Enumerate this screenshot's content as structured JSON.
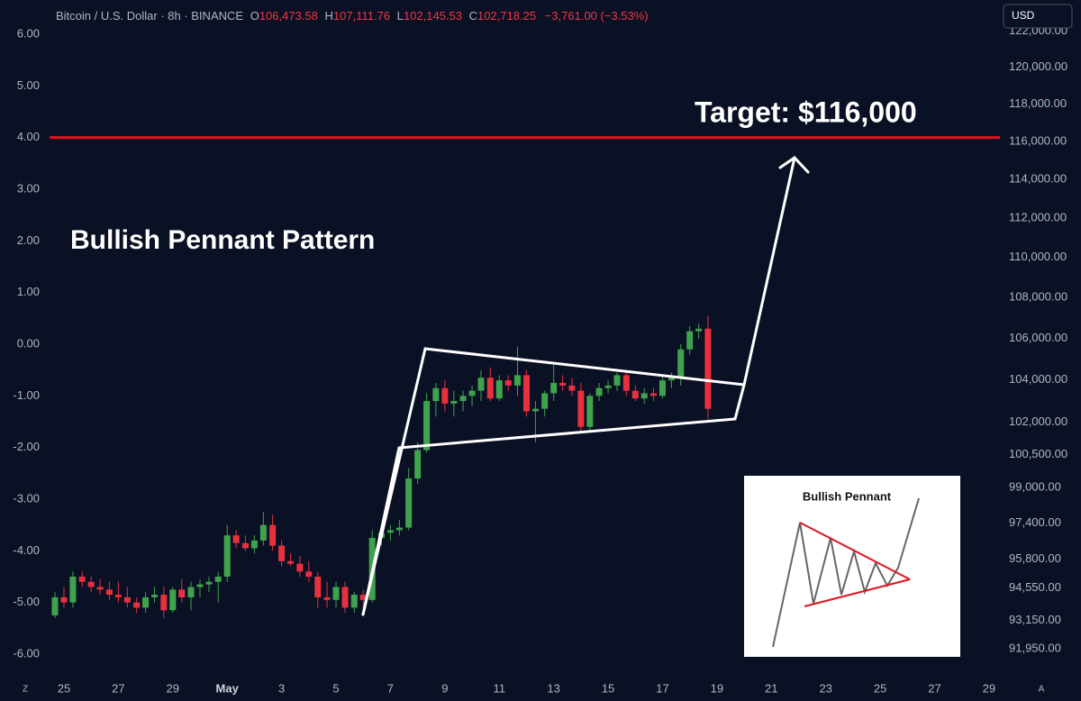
{
  "header": {
    "symbol": "Bitcoin / U.S. Dollar · 8h · BINANCE",
    "ohlc": [
      {
        "key": "O",
        "value": "106,473.58"
      },
      {
        "key": "H",
        "value": "107,111.76"
      },
      {
        "key": "L",
        "value": "102,145.53"
      },
      {
        "key": "C",
        "value": "102,718.25"
      }
    ],
    "change": "−3,761.00 (−3.53%)",
    "currency": "USD"
  },
  "toolbar": {
    "left": "Z",
    "right": "A"
  },
  "inset": {
    "title": "Bullish Pennant"
  },
  "chart_data": {
    "type": "candlestick",
    "annotations": {
      "pattern": "Bullish Pennant Pattern",
      "target": "Target: $116,000"
    },
    "up_color": "#3fa34d",
    "down_color": "#e8313f",
    "hline": {
      "value": 4,
      "color": "#e0141e"
    },
    "x": [
      -0.33,
      0,
      0.33,
      0.67,
      1,
      1.33,
      1.67,
      2,
      2.33,
      2.67,
      3,
      3.33,
      3.67,
      4,
      4.33,
      4.67,
      5,
      5.33,
      5.67,
      6,
      6.33,
      6.67,
      7,
      7.33,
      7.67,
      8,
      8.33,
      8.67,
      9,
      9.33,
      9.67,
      10,
      10.33,
      10.67,
      11,
      11.33,
      11.67,
      12,
      12.33,
      12.67,
      13,
      13.33,
      13.67,
      14,
      14.33,
      14.67,
      15,
      15.33,
      15.67,
      16,
      16.33,
      16.67,
      17,
      17.33,
      17.67,
      18,
      18.33,
      18.67,
      19,
      19.33,
      19.67,
      20,
      20.33,
      20.67,
      21,
      21.33,
      21.67,
      22,
      22.33,
      22.67,
      23,
      23.33,
      23.67
    ],
    "open": [
      -5.25,
      -4.9,
      -5.0,
      -4.5,
      -4.6,
      -4.7,
      -4.75,
      -4.85,
      -4.9,
      -5.0,
      -5.1,
      -4.9,
      -4.85,
      -5.15,
      -4.75,
      -4.9,
      -4.7,
      -4.65,
      -4.6,
      -4.5,
      -3.7,
      -3.85,
      -3.95,
      -3.8,
      -3.5,
      -3.9,
      -4.2,
      -4.25,
      -4.4,
      -4.5,
      -4.9,
      -4.95,
      -4.7,
      -5.1,
      -4.85,
      -4.95,
      -3.75,
      -3.65,
      -3.6,
      -3.55,
      -2.6,
      -2.05,
      -1.1,
      -0.85,
      -1.15,
      -1.1,
      -1.0,
      -0.9,
      -0.65,
      -1.05,
      -0.7,
      -0.8,
      -0.6,
      -1.3,
      -1.25,
      -0.95,
      -0.75,
      -0.8,
      -0.9,
      -1.6,
      -1.0,
      -0.85,
      -0.8,
      -0.6,
      -0.9,
      -1.05,
      -0.95,
      -1.0,
      -0.7,
      -0.65,
      -0.1,
      0.25,
      0.3
    ],
    "high": [
      -4.8,
      -4.7,
      -4.4,
      -4.4,
      -4.5,
      -4.55,
      -4.6,
      -4.6,
      -4.7,
      -4.9,
      -4.8,
      -4.7,
      -4.7,
      -4.7,
      -4.55,
      -4.6,
      -4.55,
      -4.5,
      -4.4,
      -3.5,
      -3.6,
      -3.7,
      -3.7,
      -3.25,
      -3.3,
      -3.8,
      -4.05,
      -4.1,
      -4.2,
      -4.4,
      -4.6,
      -4.6,
      -4.6,
      -4.8,
      -4.75,
      -3.6,
      -3.5,
      -3.5,
      -3.4,
      -2.4,
      -1.9,
      -0.95,
      -0.75,
      -0.7,
      -0.9,
      -0.9,
      -0.8,
      -0.5,
      -0.45,
      -0.6,
      -0.6,
      -0.05,
      -0.5,
      -1.1,
      -0.9,
      -0.4,
      -0.6,
      -0.65,
      -0.75,
      -0.95,
      -0.75,
      -0.7,
      -0.55,
      -0.5,
      -0.8,
      -0.85,
      -0.85,
      -0.6,
      -0.55,
      0.0,
      0.35,
      0.4,
      0.55
    ],
    "low": [
      -5.3,
      -5.1,
      -5.1,
      -4.7,
      -4.8,
      -4.85,
      -4.95,
      -5.0,
      -5.1,
      -5.2,
      -5.2,
      -5.0,
      -5.3,
      -5.2,
      -5.0,
      -5.15,
      -4.9,
      -4.8,
      -5.0,
      -4.6,
      -3.95,
      -4.0,
      -4.05,
      -3.9,
      -4.0,
      -4.3,
      -4.3,
      -4.5,
      -4.6,
      -5.1,
      -5.1,
      -5.1,
      -5.2,
      -5.2,
      -5.1,
      -5.0,
      -3.9,
      -3.8,
      -3.7,
      -3.6,
      -2.7,
      -2.1,
      -1.4,
      -1.3,
      -1.4,
      -1.3,
      -1.2,
      -1.1,
      -1.1,
      -1.1,
      -0.9,
      -1.0,
      -1.4,
      -1.9,
      -1.4,
      -1.1,
      -0.9,
      -1.0,
      -1.7,
      -1.7,
      -1.1,
      -0.95,
      -0.9,
      -1.0,
      -1.1,
      -1.15,
      -1.1,
      -1.05,
      -0.85,
      -0.8,
      -0.2,
      0.1,
      -1.45
    ],
    "close": [
      -4.9,
      -5.0,
      -4.5,
      -4.6,
      -4.7,
      -4.75,
      -4.85,
      -4.9,
      -5.0,
      -5.1,
      -4.9,
      -4.85,
      -5.15,
      -4.75,
      -4.9,
      -4.7,
      -4.65,
      -4.6,
      -4.5,
      -3.7,
      -3.85,
      -3.95,
      -3.8,
      -3.5,
      -3.9,
      -4.2,
      -4.25,
      -4.4,
      -4.5,
      -4.9,
      -4.95,
      -4.7,
      -5.1,
      -4.85,
      -4.95,
      -3.75,
      -3.65,
      -3.6,
      -3.55,
      -2.6,
      -2.05,
      -1.1,
      -0.85,
      -1.15,
      -1.1,
      -1.0,
      -0.9,
      -0.65,
      -1.05,
      -0.7,
      -0.8,
      -0.6,
      -1.3,
      -1.25,
      -0.95,
      -0.75,
      -0.8,
      -0.9,
      -1.6,
      -1.0,
      -0.85,
      -0.8,
      -0.6,
      -0.9,
      -1.05,
      -0.95,
      -1.0,
      -0.7,
      -0.65,
      -0.1,
      0.25,
      0.3,
      -1.25
    ],
    "xlim": [
      -2.35,
      34.4
    ],
    "xticks": [
      {
        "value": 0,
        "label": "25"
      },
      {
        "value": 2,
        "label": "27"
      },
      {
        "value": 4,
        "label": "29"
      },
      {
        "value": 6,
        "label": "May"
      },
      {
        "value": 8,
        "label": "3"
      },
      {
        "value": 10,
        "label": "5"
      },
      {
        "value": 12,
        "label": "7"
      },
      {
        "value": 14,
        "label": "9"
      },
      {
        "value": 16,
        "label": "11"
      },
      {
        "value": 18,
        "label": "13"
      },
      {
        "value": 20,
        "label": "15"
      },
      {
        "value": 22,
        "label": "17"
      },
      {
        "value": 24,
        "label": "19"
      },
      {
        "value": 26,
        "label": "21"
      },
      {
        "value": 28,
        "label": "23"
      },
      {
        "value": 30,
        "label": "25"
      },
      {
        "value": 32,
        "label": "27"
      },
      {
        "value": 34,
        "label": "29"
      }
    ],
    "ylim": [
      -6,
      6
    ],
    "yticks": [
      {
        "value": 6,
        "label": "6.00"
      },
      {
        "value": 5,
        "label": "5.00"
      },
      {
        "value": 4,
        "label": "4.00"
      },
      {
        "value": 3,
        "label": "3.00"
      },
      {
        "value": 2,
        "label": "2.00"
      },
      {
        "value": 1,
        "label": "1.00"
      },
      {
        "value": 0,
        "label": "0.00"
      },
      {
        "value": -1,
        "label": "-1.00"
      },
      {
        "value": -2,
        "label": "-2.00"
      },
      {
        "value": -3,
        "label": "-3.00"
      },
      {
        "value": -4,
        "label": "-4.00"
      },
      {
        "value": -5,
        "label": "-5.00"
      },
      {
        "value": -6,
        "label": "-6.00"
      }
    ],
    "y2_log": true,
    "y2lim": [
      91722,
      121830
    ],
    "y2ticks": [
      {
        "value": 122000,
        "label": "122,000.00"
      },
      {
        "value": 120000,
        "label": "120,000.00"
      },
      {
        "value": 118000,
        "label": "118,000.00"
      },
      {
        "value": 116000,
        "label": "116,000.00"
      },
      {
        "value": 114000,
        "label": "114,000.00"
      },
      {
        "value": 112000,
        "label": "112,000.00"
      },
      {
        "value": 110000,
        "label": "110,000.00"
      },
      {
        "value": 108000,
        "label": "108,000.00"
      },
      {
        "value": 106000,
        "label": "106,000.00"
      },
      {
        "value": 104000,
        "label": "104,000.00"
      },
      {
        "value": 102000,
        "label": "102,000.00"
      },
      {
        "value": 100500,
        "label": "100,500.00"
      },
      {
        "value": 99000,
        "label": "99,000.00"
      },
      {
        "value": 97400,
        "label": "97,400.00"
      },
      {
        "value": 95800,
        "label": "95,800.00"
      },
      {
        "value": 94550,
        "label": "94,550.00"
      },
      {
        "value": 93150,
        "label": "93,150.00"
      },
      {
        "value": 91950,
        "label": "91,950.00"
      }
    ]
  }
}
